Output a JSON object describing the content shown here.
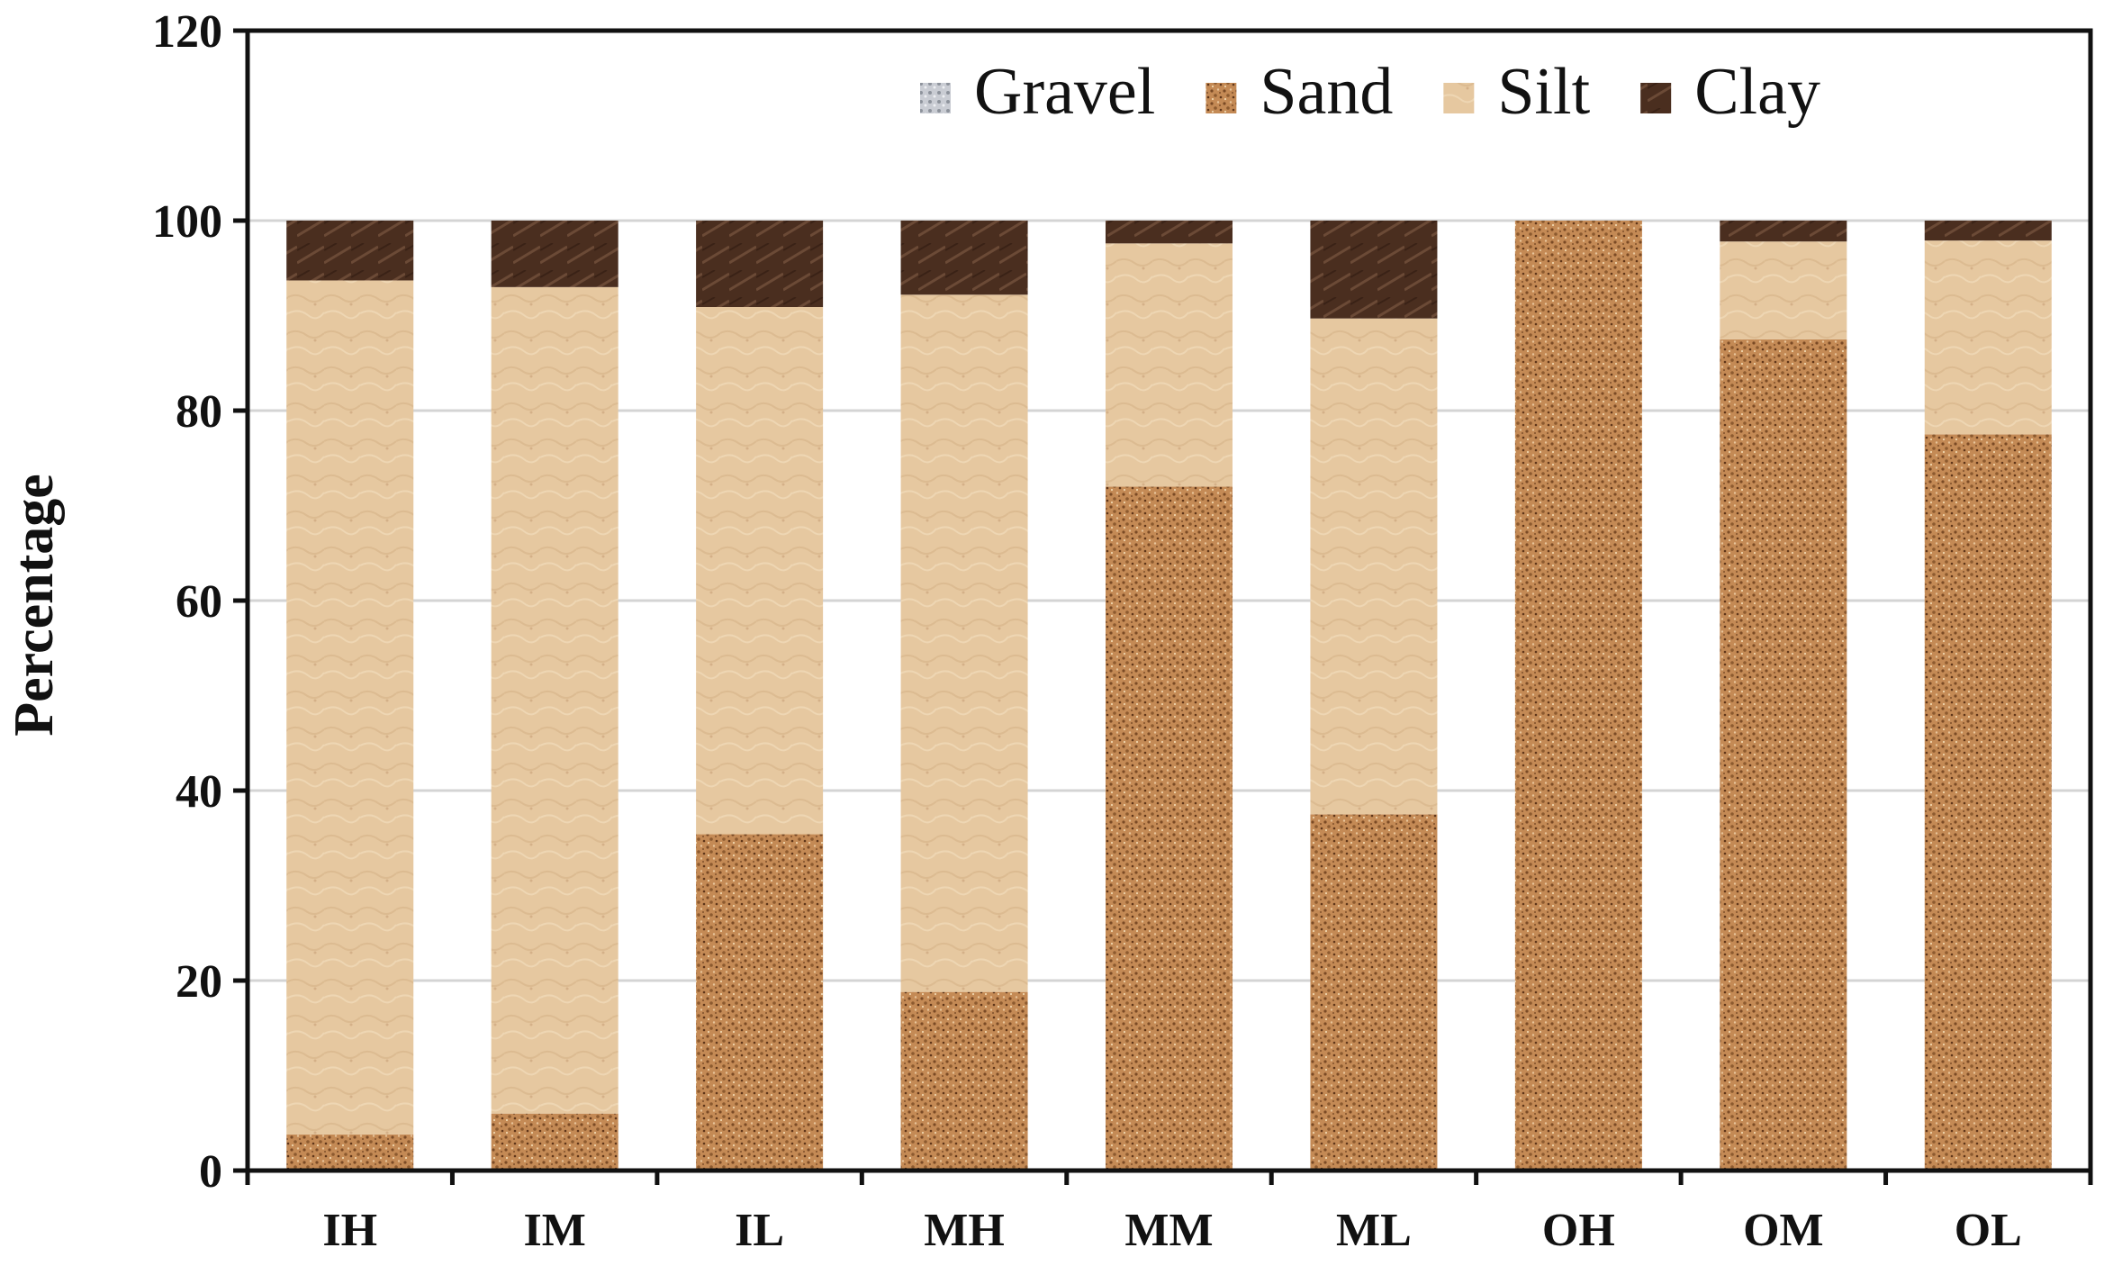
{
  "chart_data": {
    "type": "bar",
    "stacked": true,
    "title": "",
    "xlabel": "",
    "ylabel": "Percentage",
    "ylim": [
      0,
      120
    ],
    "yticks": [
      0,
      20,
      40,
      60,
      80,
      100,
      120
    ],
    "grid": true,
    "legend_position": "top-right",
    "categories": [
      "IH",
      "IM",
      "IL",
      "MH",
      "MM",
      "ML",
      "OH",
      "OM",
      "OL"
    ],
    "series": [
      {
        "name": "Gravel",
        "color": "#c9ccd3",
        "values": [
          0,
          0,
          0,
          0,
          0,
          0,
          0,
          0,
          0
        ]
      },
      {
        "name": "Sand",
        "color": "#c48a55",
        "values": [
          3.8,
          6,
          35.4,
          18.8,
          72,
          37.5,
          100,
          87.5,
          77.5
        ]
      },
      {
        "name": "Silt",
        "color": "#e7c9a1",
        "values": [
          89.9,
          87,
          55.5,
          73.4,
          25.6,
          52.2,
          0,
          10.3,
          20.4
        ]
      },
      {
        "name": "Clay",
        "color": "#4a2e1f",
        "values": [
          6.3,
          7,
          9.1,
          7.8,
          2.4,
          10.3,
          0,
          2.2,
          2.1
        ]
      }
    ]
  }
}
